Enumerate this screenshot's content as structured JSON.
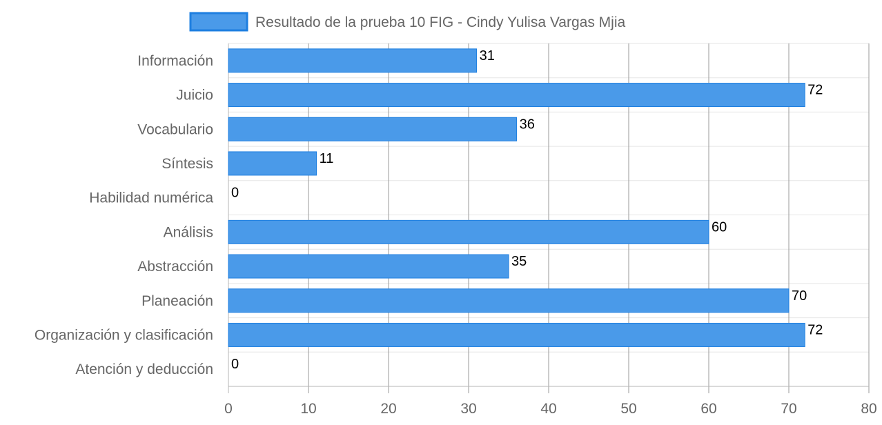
{
  "chart_data": {
    "type": "bar",
    "orientation": "horizontal",
    "categories": [
      "Información",
      "Juicio",
      "Vocabulario",
      "Síntesis",
      "Habilidad numérica",
      "Análisis",
      "Abstracción",
      "Planeación",
      "Organización y clasificación",
      "Atención y deducción"
    ],
    "series": [
      {
        "name": "Resultado de la prueba 10 FIG - Cindy Yulisa Vargas Mjia",
        "values": [
          31,
          72,
          36,
          11,
          0,
          60,
          35,
          70,
          72,
          0
        ],
        "color": "#4a9ae9",
        "border_color": "#1e7fe0"
      }
    ],
    "xlim": [
      0,
      80
    ],
    "x_ticks": [
      0,
      10,
      20,
      30,
      40,
      50,
      60,
      70,
      80
    ],
    "grid": true,
    "legend_position": "top-center",
    "data_labels": true
  }
}
